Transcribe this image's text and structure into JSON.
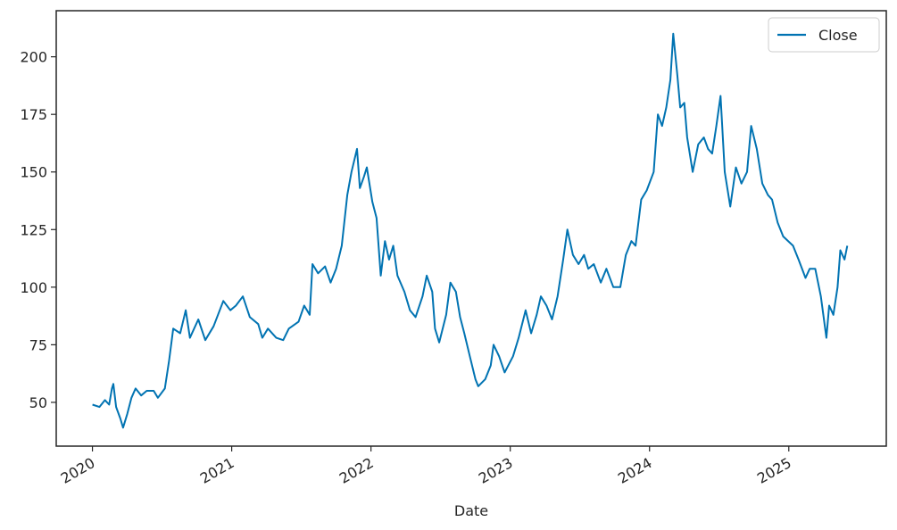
{
  "chart_data": {
    "type": "line",
    "xlabel": "Date",
    "x": [
      2020.0,
      2020.05,
      2020.09,
      2020.12,
      2020.14,
      2020.15,
      2020.17,
      2020.2,
      2020.22,
      2020.25,
      2020.28,
      2020.31,
      2020.35,
      2020.39,
      2020.44,
      2020.47,
      2020.52,
      2020.55,
      2020.58,
      2020.63,
      2020.67,
      2020.7,
      2020.76,
      2020.81,
      2020.87,
      2020.94,
      2020.99,
      2021.03,
      2021.08,
      2021.13,
      2021.19,
      2021.22,
      2021.26,
      2021.32,
      2021.37,
      2021.41,
      2021.48,
      2021.52,
      2021.56,
      2021.58,
      2021.62,
      2021.67,
      2021.71,
      2021.75,
      2021.79,
      2021.83,
      2021.86,
      2021.9,
      2021.92,
      2021.95,
      2021.97,
      2022.01,
      2022.04,
      2022.07,
      2022.1,
      2022.13,
      2022.16,
      2022.19,
      2022.24,
      2022.28,
      2022.32,
      2022.37,
      2022.4,
      2022.44,
      2022.46,
      2022.49,
      2022.54,
      2022.57,
      2022.61,
      2022.64,
      2022.67,
      2022.71,
      2022.75,
      2022.77,
      2022.82,
      2022.86,
      2022.88,
      2022.92,
      2022.96,
      2023.02,
      2023.06,
      2023.11,
      2023.15,
      2023.19,
      2023.22,
      2023.26,
      2023.3,
      2023.34,
      2023.38,
      2023.41,
      2023.45,
      2023.49,
      2023.53,
      2023.56,
      2023.6,
      2023.65,
      2023.69,
      2023.74,
      2023.79,
      2023.83,
      2023.87,
      2023.9,
      2023.94,
      2023.98,
      2024.03,
      2024.06,
      2024.09,
      2024.12,
      2024.15,
      2024.17,
      2024.2,
      2024.22,
      2024.25,
      2024.27,
      2024.31,
      2024.35,
      2024.39,
      2024.42,
      2024.45,
      2024.48,
      2024.51,
      2024.54,
      2024.58,
      2024.62,
      2024.66,
      2024.7,
      2024.73,
      2024.77,
      2024.81,
      2024.85,
      2024.88,
      2024.92,
      2024.96,
      2025.03,
      2025.07,
      2025.12,
      2025.15,
      2025.19,
      2025.23,
      2025.27,
      2025.29,
      2025.32,
      2025.35,
      2025.37,
      2025.4,
      2025.42
    ],
    "series": [
      {
        "name": "Close",
        "color": "#0173b2",
        "values": [
          49,
          48,
          51,
          49,
          56,
          58,
          48,
          43,
          39,
          45,
          52,
          56,
          53,
          55,
          55,
          52,
          56,
          68,
          82,
          80,
          90,
          78,
          86,
          77,
          83,
          94,
          90,
          92,
          96,
          87,
          84,
          78,
          82,
          78,
          77,
          82,
          85,
          92,
          88,
          110,
          106,
          109,
          102,
          108,
          118,
          140,
          150,
          160,
          143,
          148,
          152,
          137,
          130,
          105,
          120,
          112,
          118,
          105,
          98,
          90,
          87,
          96,
          105,
          98,
          82,
          76,
          88,
          102,
          98,
          87,
          80,
          70,
          60,
          57,
          60,
          66,
          75,
          70,
          63,
          70,
          78,
          90,
          80,
          88,
          96,
          92,
          86,
          96,
          112,
          125,
          114,
          110,
          114,
          108,
          110,
          102,
          108,
          100,
          100,
          114,
          120,
          118,
          138,
          142,
          150,
          175,
          170,
          178,
          190,
          210,
          192,
          178,
          180,
          165,
          150,
          162,
          165,
          160,
          158,
          170,
          183,
          150,
          135,
          152,
          145,
          150,
          170,
          160,
          145,
          140,
          138,
          128,
          122,
          118,
          112,
          104,
          108,
          108,
          96,
          78,
          92,
          88,
          100,
          116,
          112,
          118
        ]
      }
    ],
    "xlim": [
      2019.74,
      2025.7
    ],
    "xticks": [
      2020,
      2021,
      2022,
      2023,
      2024,
      2025
    ],
    "ylim": [
      31,
      220
    ],
    "yticks": [
      50,
      75,
      100,
      125,
      150,
      175,
      200
    ],
    "legend": "upper right"
  }
}
